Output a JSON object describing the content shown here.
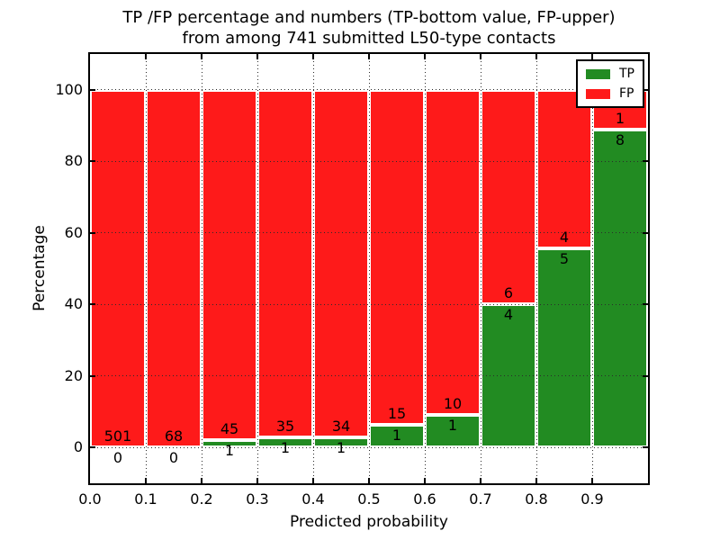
{
  "figure": {
    "title_lines": [
      "TP /FP percentage and numbers (TP-bottom value, FP-upper)",
      "from among 741 submitted L50-type contacts"
    ]
  },
  "chart_data": {
    "type": "bar",
    "stacked": true,
    "normalized": "each 0.1-wide bin scaled so TP+FP = 100%",
    "title": "TP /FP percentage and numbers (TP-bottom value, FP-upper)\nfrom among 741 submitted L50-type contacts",
    "xlabel": "Predicted probability",
    "ylabel": "Percentage",
    "total_contacts": 741,
    "xlim": [
      0.0,
      1.0
    ],
    "ylim": [
      -10,
      110
    ],
    "bin_edges": [
      0.0,
      0.1,
      0.2,
      0.3,
      0.4,
      0.5,
      0.6,
      0.7,
      0.8,
      0.9,
      1.0
    ],
    "x_ticks": [
      "0.0",
      "0.1",
      "0.2",
      "0.3",
      "0.4",
      "0.5",
      "0.6",
      "0.7",
      "0.8",
      "0.9"
    ],
    "y_tick_values": [
      0,
      20,
      40,
      60,
      80,
      100
    ],
    "series": [
      {
        "name": "TP",
        "color": "#228b22",
        "counts": [
          0,
          0,
          1,
          1,
          1,
          1,
          1,
          4,
          5,
          8
        ]
      },
      {
        "name": "FP",
        "color": "#fe1a1a",
        "counts": [
          501,
          68,
          45,
          35,
          34,
          15,
          10,
          6,
          4,
          1
        ]
      }
    ],
    "tp_percent_of_bin": [
      0.0,
      0.0,
      2.2,
      2.8,
      2.9,
      6.2,
      9.1,
      40.0,
      55.6,
      88.9
    ],
    "legend": {
      "position": "upper right",
      "labels": [
        "TP",
        "FP"
      ]
    },
    "grid": {
      "style": "dotted",
      "color": "#2b2b2b",
      "bar_edge_color": "#ffffff"
    }
  }
}
